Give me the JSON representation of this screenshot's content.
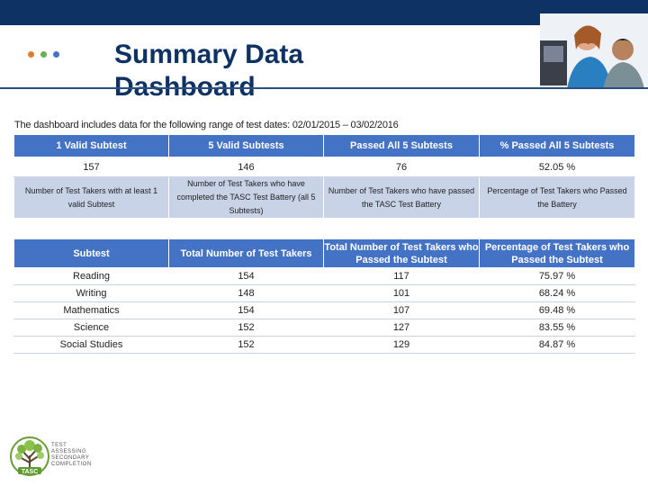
{
  "slide": {
    "title": "Summary Data Dashboard",
    "caption": "The dashboard includes data for the following range of test dates: 02/01/2015 – 03/02/2016"
  },
  "colors": {
    "topbar": "#0d3263",
    "header": "#4472c4",
    "desc_row": "#c8d3e8",
    "dots": [
      "#e07a2e",
      "#6ab04c",
      "#4472c4"
    ]
  },
  "summary_table": {
    "headers": [
      "1 Valid Subtest",
      "5 Valid Subtests",
      "Passed All 5 Subtests",
      "% Passed All 5 Subtests"
    ],
    "values": [
      "157",
      "146",
      "76",
      "52.05 %"
    ],
    "descriptions": [
      "Number of Test Takers with at least 1 valid Subtest",
      "Number of Test Takers who have completed the TASC Test Battery (all 5 Subtests)",
      "Number of Test Takers who have passed the TASC Test Battery",
      "Percentage of Test Takers who Passed the Battery"
    ]
  },
  "subtest_table": {
    "headers": [
      "Subtest",
      "Total Number of Test Takers",
      "Total Number of Test Takers who Passed the Subtest",
      "Percentage of Test Takers who Passed the Subtest"
    ],
    "rows": [
      [
        "Reading",
        "154",
        "117",
        "75.97 %"
      ],
      [
        "Writing",
        "148",
        "101",
        "68.24 %"
      ],
      [
        "Mathematics",
        "154",
        "107",
        "69.48 %"
      ],
      [
        "Science",
        "152",
        "127",
        "83.55 %"
      ],
      [
        "Social Studies",
        "152",
        "129",
        "84.87 %"
      ]
    ]
  },
  "logo": {
    "mark": "TASC",
    "text_lines": [
      "TEST",
      "ASSESSING",
      "SECONDARY",
      "COMPLETION"
    ]
  }
}
